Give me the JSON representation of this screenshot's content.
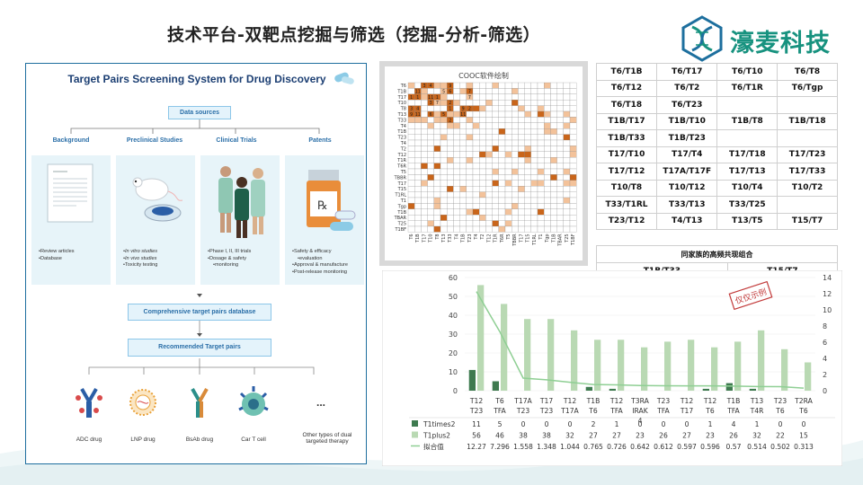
{
  "header": {
    "title": "技术平台-双靶点挖掘与筛选（挖掘-分析-筛选）",
    "logo_text": "濠麦科技"
  },
  "left_panel": {
    "title": "Target Pairs Screening System for Drug Discovery",
    "data_sources": "Data sources",
    "categories": [
      {
        "label": "Background",
        "bullets": [
          "Review articles",
          "Database"
        ]
      },
      {
        "label": "Preclinical Studies",
        "bullets": [
          "In vitro studies",
          "In vivo studies",
          "Toxicity testing"
        ]
      },
      {
        "label": "Clinical Trials",
        "bullets": [
          "Phase I, II, III trials",
          "Dosage & safety",
          "monitoring"
        ]
      },
      {
        "label": "Patents",
        "bullets": [
          "Safety & efficacy",
          "evaluation",
          "Approval & manufacture",
          "Post-release monitoring"
        ]
      }
    ],
    "database_box": "Comprehensive target pairs database",
    "recommended_box": "Recommended Target pairs",
    "drugs": [
      "ADC drug",
      "LNP drug",
      "BsAb drug",
      "Car T cell",
      "Other types of dual targeted therapy"
    ],
    "ellipsis": "..."
  },
  "heatmap": {
    "title": "COOC软件绘制",
    "row_labels": [
      "T6",
      "T1B",
      "T17",
      "T10",
      "T8",
      "T13",
      "T33",
      "T4",
      "T1B",
      "T23",
      "T4",
      "T2",
      "T12",
      "T1R",
      "T6R",
      "T5",
      "TBBR",
      "T17",
      "T15",
      "T1RL",
      "T1",
      "Tgp",
      "T1B",
      "TBAR",
      "T25",
      "T1BF"
    ],
    "col_labels": [
      "T6",
      "T1B",
      "T17",
      "T10",
      "T8",
      "T13",
      "T33",
      "T4",
      "T1B",
      "T23",
      "T4",
      "T2",
      "T12",
      "T1R",
      "T6R",
      "T5",
      "TBBR",
      "T17",
      "T15",
      "T1RL",
      "T1",
      "Tgp",
      "T1B",
      "TBAR",
      "T25",
      "T1BF"
    ],
    "sample_numbers": [
      "11",
      "5",
      "3",
      "2",
      "1",
      "7",
      "4",
      "9",
      "6"
    ],
    "accent_dark": "#c9651a",
    "accent_light": "#f3c29a"
  },
  "pair_table": {
    "rows": [
      [
        "T6/T1B",
        "T6/T17",
        "T6/T10",
        "T6/T8"
      ],
      [
        "T6/T12",
        "T6/T2",
        "T6/T1R",
        "T6/Tgp"
      ],
      [
        "T6/T18",
        "T6/T23",
        "",
        ""
      ],
      [
        "T1B/T17",
        "T1B/T10",
        "T1B/T8",
        "T1B/T18"
      ],
      [
        "T1B/T33",
        "T1B/T23",
        "",
        ""
      ],
      [
        "T17/T10",
        "T17/T4",
        "T17/T18",
        "T17/T23"
      ],
      [
        "T17/T12",
        "T17A/T17F",
        "T17/T13",
        "T17/T33"
      ],
      [
        "T10/T8",
        "T10/T12",
        "T10/T4",
        "T10/T2"
      ],
      [
        "T33/T1RL",
        "T33/T13",
        "T33/T25",
        ""
      ],
      [
        "T23/T12",
        "T4/T13",
        "T13/T5",
        "T15/T7"
      ]
    ],
    "family_label": "同家族的高频共现组合",
    "family_pairs": [
      "T1B/T33",
      "T15/T7"
    ]
  },
  "chart_data": {
    "type": "bar",
    "categories": [
      [
        "T12",
        "T23"
      ],
      [
        "T6",
        "TFA"
      ],
      [
        "T17A",
        "T23"
      ],
      [
        "T17",
        "T23"
      ],
      [
        "T12",
        "T17A"
      ],
      [
        "T1B",
        "T6"
      ],
      [
        "T12",
        "TFA"
      ],
      [
        "T3RA",
        "IRAK",
        "4"
      ],
      [
        "T23",
        "TFA"
      ],
      [
        "T12",
        "T17"
      ],
      [
        "T12",
        "T6"
      ],
      [
        "T1B",
        "TFA"
      ],
      [
        "T13",
        "T4R"
      ],
      [
        "T23",
        "T6"
      ],
      [
        "T2RA",
        "T6"
      ]
    ],
    "series": [
      {
        "name": "T1times2",
        "values": [
          11,
          5,
          0,
          0,
          0,
          2,
          1,
          0,
          0,
          0,
          1,
          4,
          1,
          0,
          0
        ],
        "color": "#3e7a4f"
      },
      {
        "name": "T1plus2",
        "values": [
          56,
          46,
          38,
          38,
          32,
          27,
          27,
          23,
          26,
          27,
          23,
          26,
          32,
          22,
          15
        ],
        "color": "#b9d9b3"
      },
      {
        "name": "拟合值",
        "values": [
          12.27,
          7.296,
          1.558,
          1.348,
          1.044,
          0.765,
          0.726,
          0.642,
          0.612,
          0.597,
          0.596,
          0.57,
          0.514,
          0.502,
          0.313
        ],
        "color": "#8fcf94"
      }
    ],
    "table_values": [
      [
        "11",
        "5",
        "0",
        "0",
        "0",
        "2",
        "1",
        "0",
        "0",
        "0",
        "1",
        "4",
        "1",
        "0",
        "0"
      ],
      [
        "56",
        "46",
        "38",
        "38",
        "32",
        "27",
        "27",
        "23",
        "26",
        "27",
        "23",
        "26",
        "32",
        "22",
        "15"
      ],
      [
        "12.27",
        "7.296",
        "1.558",
        "1.348",
        "1.044",
        "0.765",
        "0.726",
        "0.642",
        "0.612",
        "0.597",
        "0.596",
        "0.57",
        "0.514",
        "0.502",
        "0.313"
      ]
    ],
    "y_left_ticks": [
      "0",
      "10",
      "20",
      "30",
      "40",
      "50",
      "60"
    ],
    "y_right_ticks": [
      "0",
      "2",
      "4",
      "6",
      "8",
      "10",
      "12",
      "14"
    ],
    "ylim_left": [
      0,
      60
    ],
    "ylim_right": [
      0,
      14
    ],
    "stamp": "仅仅示例"
  }
}
